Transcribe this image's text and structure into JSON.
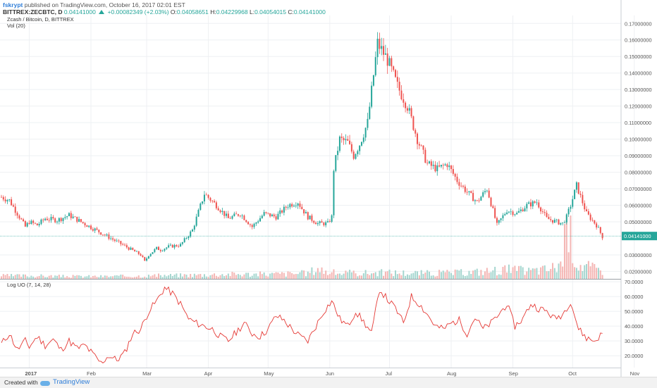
{
  "header": {
    "user": "fskrypt",
    "published": "published on TradingView.com, October 16, 2017 02:01 EST",
    "symbol": "BITTREX:ZECBTC, D",
    "last": "0.04141000",
    "change": "+0.00082349 (+2.03%)",
    "o_label": "O:",
    "o_value": "0.04058651",
    "h_label": "H:",
    "h_value": "0.04229968",
    "l_label": "L:",
    "l_value": "0.04054015",
    "c_label": "C:",
    "c_value": "0.04141000"
  },
  "indicators": {
    "main_title": "Zcash / Bitcoin, D, BITTREX",
    "volume_title": "Vol (20)",
    "uo_title": "Log UO (7, 14, 28)"
  },
  "price_tag": "0.04141000",
  "footer": {
    "created": "Created with",
    "brand": "TradingView"
  },
  "colors": {
    "up": "#26a69a",
    "down": "#ef5350",
    "uo_line": "#e53935",
    "price_tag": "#26a69a",
    "grid": "#eef0f3"
  },
  "chart_data": [
    {
      "type": "candlestick",
      "title": "Zcash / Bitcoin, D, BITTREX",
      "x_ticks": [
        "2017",
        "Feb",
        "Mar",
        "Apr",
        "May",
        "Jun",
        "Jul",
        "Aug",
        "Sep",
        "Oct",
        "Nov"
      ],
      "y_ticks": [
        "0.17000000",
        "0.16000000",
        "0.15000000",
        "0.14000000",
        "0.13000000",
        "0.12000000",
        "0.11000000",
        "0.10000000",
        "0.09000000",
        "0.08000000",
        "0.07000000",
        "0.06000000",
        "0.05000000",
        "0.03000000",
        "0.02000000"
      ],
      "ylim": [
        0.0155,
        0.1748
      ],
      "last_price": 0.04141,
      "close_series": {
        "name": "",
        "days_from_dec31_2016": [
          -14,
          -10,
          -6,
          -2,
          0,
          4,
          8,
          14,
          20,
          26,
          32,
          38,
          44,
          50,
          56,
          58,
          60,
          64,
          66,
          70,
          76,
          82,
          88,
          94,
          100,
          106,
          112,
          118,
          124,
          130,
          135,
          137,
          140,
          145,
          150,
          152,
          153,
          156,
          160,
          163,
          166,
          170,
          175,
          180,
          185,
          190,
          195,
          200,
          205,
          210,
          215,
          220,
          225,
          230,
          235,
          240,
          245,
          250,
          255,
          260,
          265,
          268,
          270,
          272,
          275,
          280,
          285,
          288
        ],
        "values": [
          0.065,
          0.063,
          0.055,
          0.047,
          0.05,
          0.048,
          0.052,
          0.051,
          0.054,
          0.05,
          0.046,
          0.042,
          0.038,
          0.034,
          0.03,
          0.026,
          0.03,
          0.034,
          0.033,
          0.035,
          0.036,
          0.045,
          0.067,
          0.06,
          0.052,
          0.055,
          0.047,
          0.055,
          0.053,
          0.06,
          0.062,
          0.058,
          0.053,
          0.049,
          0.049,
          0.053,
          0.082,
          0.1,
          0.098,
          0.09,
          0.097,
          0.11,
          0.158,
          0.148,
          0.132,
          0.12,
          0.1,
          0.085,
          0.082,
          0.085,
          0.075,
          0.068,
          0.062,
          0.07,
          0.048,
          0.057,
          0.055,
          0.06,
          0.062,
          0.052,
          0.05,
          0.049,
          0.053,
          0.06,
          0.072,
          0.055,
          0.048,
          0.041
        ]
      }
    },
    {
      "type": "bar",
      "title": "Vol (20)",
      "note": "volume histogram",
      "days_from_dec31_2016": [
        -14,
        0,
        20,
        40,
        60,
        80,
        100,
        120,
        140,
        145,
        150,
        160,
        180,
        200,
        220,
        240,
        250,
        260,
        265,
        268,
        270,
        275,
        280,
        285
      ],
      "values": [
        0.1,
        0.1,
        0.08,
        0.08,
        0.1,
        0.12,
        0.15,
        0.15,
        0.18,
        0.35,
        0.2,
        0.18,
        0.2,
        0.18,
        0.2,
        0.3,
        0.25,
        0.3,
        0.4,
        0.6,
        2.0,
        0.5,
        0.4,
        0.3
      ]
    },
    {
      "type": "line",
      "title": "Log UO (7, 14, 28)",
      "y_ticks": [
        "70.0000",
        "60.0000",
        "50.0000",
        "40.0000",
        "30.0000",
        "20.0000"
      ],
      "ylim": [
        12.0,
        71.5
      ],
      "series": [
        {
          "name": "",
          "days_from_dec31_2016": [
            -14,
            -10,
            -6,
            -2,
            0,
            4,
            8,
            12,
            16,
            20,
            24,
            28,
            32,
            36,
            40,
            44,
            48,
            52,
            56,
            60,
            64,
            68,
            72,
            76,
            80,
            84,
            88,
            92,
            96,
            100,
            104,
            108,
            112,
            116,
            120,
            124,
            128,
            132,
            136,
            140,
            144,
            148,
            152,
            156,
            160,
            164,
            168,
            172,
            176,
            180,
            184,
            188,
            192,
            196,
            200,
            204,
            208,
            212,
            216,
            220,
            224,
            228,
            232,
            236,
            240,
            244,
            248,
            252,
            256,
            260,
            264,
            268,
            272,
            276,
            280,
            284,
            288
          ],
          "values": [
            28,
            35,
            24,
            30,
            26,
            33,
            27,
            31,
            24,
            30,
            25,
            27,
            21,
            15,
            20,
            17,
            22,
            35,
            38,
            50,
            57,
            66,
            62,
            55,
            45,
            42,
            40,
            38,
            33,
            30,
            36,
            42,
            35,
            33,
            38,
            47,
            44,
            38,
            33,
            30,
            40,
            50,
            57,
            45,
            40,
            50,
            43,
            35,
            65,
            58,
            52,
            42,
            60,
            55,
            48,
            40,
            38,
            42,
            44,
            35,
            46,
            38,
            42,
            48,
            55,
            40,
            45,
            55,
            52,
            50,
            45,
            48,
            57,
            38,
            32,
            30,
            35
          ]
        }
      ]
    }
  ]
}
